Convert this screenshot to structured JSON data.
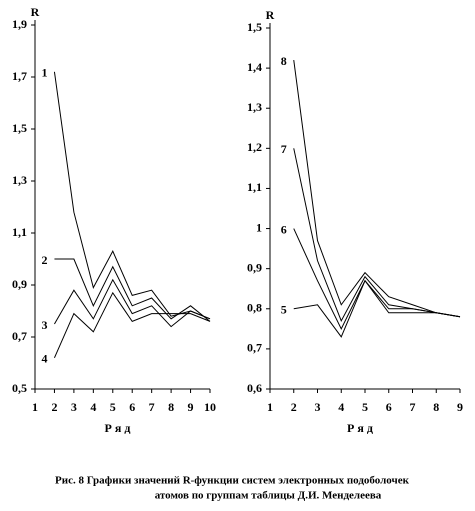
{
  "chart_data": [
    {
      "type": "line",
      "y_label": "R",
      "x_label": "Р я д",
      "x": [
        2,
        3,
        4,
        5,
        6,
        7,
        8,
        9,
        10
      ],
      "xlim": [
        1,
        10
      ],
      "xticks": [
        1,
        2,
        3,
        4,
        5,
        6,
        7,
        8,
        9,
        10
      ],
      "ylim": [
        0.5,
        1.9
      ],
      "yticks": [
        {
          "value": 0.5,
          "label": "0,5"
        },
        {
          "value": 0.7,
          "label": "0,7"
        },
        {
          "value": 0.9,
          "label": "0,9"
        },
        {
          "value": 1.1,
          "label": "1,1"
        },
        {
          "value": 1.3,
          "label": "1,3"
        },
        {
          "value": 1.5,
          "label": "1,5"
        },
        {
          "value": 1.7,
          "label": "1,7"
        },
        {
          "value": 1.9,
          "label": "1,9"
        }
      ],
      "grid": false,
      "series": [
        {
          "name": "1",
          "color": "#000000",
          "values": [
            1.72,
            1.18,
            0.89,
            1.03,
            0.86,
            0.88,
            0.78,
            0.8,
            0.77
          ]
        },
        {
          "name": "2",
          "color": "#000000",
          "values": [
            1.0,
            1.0,
            0.82,
            0.97,
            0.82,
            0.85,
            0.77,
            0.82,
            0.76
          ]
        },
        {
          "name": "3",
          "color": "#000000",
          "values": [
            0.75,
            0.88,
            0.77,
            0.92,
            0.79,
            0.82,
            0.74,
            0.8,
            0.77
          ]
        },
        {
          "name": "4",
          "color": "#000000",
          "values": [
            0.62,
            0.79,
            0.72,
            0.87,
            0.76,
            0.79,
            0.79,
            0.79,
            0.76
          ]
        }
      ]
    },
    {
      "type": "line",
      "y_label": "R",
      "x_label": "Р я д",
      "x": [
        2,
        3,
        4,
        5,
        6,
        7,
        8,
        9
      ],
      "xlim": [
        1,
        9
      ],
      "xticks": [
        1,
        2,
        3,
        4,
        5,
        6,
        7,
        8,
        9
      ],
      "ylim": [
        0.6,
        1.5
      ],
      "yticks": [
        {
          "value": 0.6,
          "label": "0,6"
        },
        {
          "value": 0.7,
          "label": "0,7"
        },
        {
          "value": 0.8,
          "label": "0,8"
        },
        {
          "value": 0.9,
          "label": "0,9"
        },
        1,
        {
          "value": 1.1,
          "label": "1,1"
        },
        {
          "value": 1.2,
          "label": "1,2"
        },
        {
          "value": 1.3,
          "label": "1,3"
        },
        {
          "value": 1.4,
          "label": "1,4"
        },
        {
          "value": 1.5,
          "label": "1,5"
        }
      ],
      "grid": false,
      "series": [
        {
          "name": "8",
          "color": "#000000",
          "values": [
            1.42,
            0.97,
            0.81,
            0.89,
            0.83,
            0.81,
            0.79,
            0.78
          ]
        },
        {
          "name": "7",
          "color": "#000000",
          "values": [
            1.2,
            0.92,
            0.77,
            0.88,
            0.81,
            0.8,
            0.79,
            0.78
          ]
        },
        {
          "name": "6",
          "color": "#000000",
          "values": [
            1.0,
            0.87,
            0.75,
            0.87,
            0.8,
            0.8,
            0.79,
            0.78
          ]
        },
        {
          "name": "5",
          "color": "#000000",
          "values": [
            0.8,
            0.81,
            0.73,
            0.87,
            0.79,
            0.79,
            0.79,
            0.78
          ]
        }
      ]
    }
  ],
  "caption": [
    "Рис. 8  Графики значений R-функции систем электронных подоболочек",
    "атомов по группам таблицы Д.И. Менделеева"
  ]
}
